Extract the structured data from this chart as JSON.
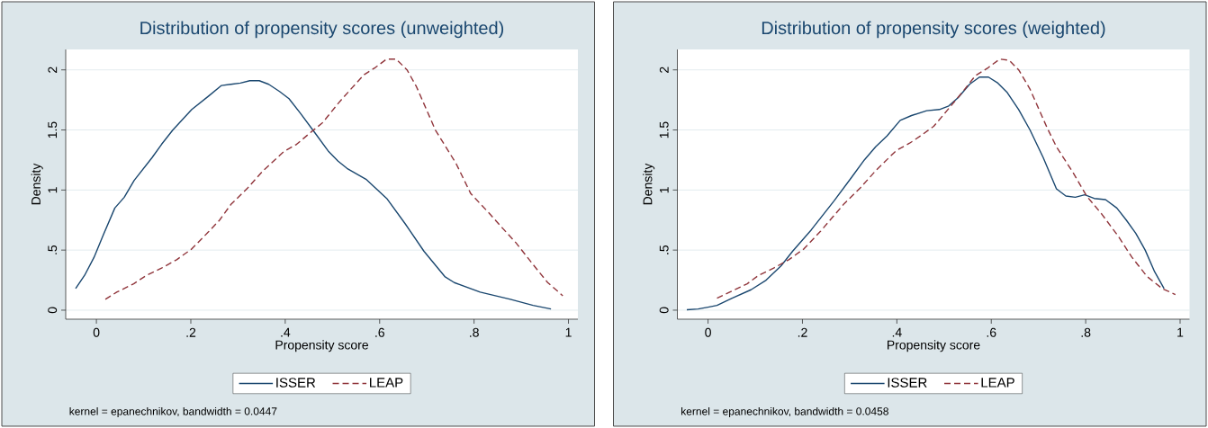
{
  "chart_data": [
    {
      "type": "line",
      "title": "Distribution of propensity scores (unweighted)",
      "xlabel": "Propensity score",
      "ylabel": "Density",
      "xlim": [
        -0.065,
        1.02
      ],
      "ylim": [
        -0.075,
        2.17
      ],
      "xticks": [
        0,
        {
          "value": 0.2,
          "label": ".2"
        },
        {
          "value": 0.4,
          "label": ".4"
        },
        {
          "value": 0.6,
          "label": ".6"
        },
        {
          "value": 0.8,
          "label": ".8"
        },
        1
      ],
      "yticks": [
        0,
        {
          "value": 0.5,
          "label": ".5"
        },
        1,
        1.5,
        2
      ],
      "grid": "y",
      "legend": "bottom",
      "annotations": [
        "kernel = epanechnikov, bandwidth = 0.0447"
      ],
      "series": [
        {
          "name": "ISSER",
          "color": "#1a476f",
          "line_style": "solid",
          "x": [
            -0.044,
            -0.025,
            -0.005,
            0.015,
            0.039,
            0.059,
            0.08,
            0.118,
            0.138,
            0.162,
            0.202,
            0.237,
            0.265,
            0.285,
            0.305,
            0.325,
            0.345,
            0.365,
            0.388,
            0.408,
            0.432,
            0.464,
            0.492,
            0.512,
            0.531,
            0.571,
            0.615,
            0.654,
            0.694,
            0.738,
            0.758,
            0.813,
            0.877,
            0.925,
            0.963
          ],
          "values": [
            0.18,
            0.29,
            0.44,
            0.63,
            0.85,
            0.94,
            1.08,
            1.27,
            1.38,
            1.5,
            1.67,
            1.78,
            1.87,
            1.88,
            1.89,
            1.91,
            1.91,
            1.88,
            1.82,
            1.76,
            1.64,
            1.47,
            1.32,
            1.24,
            1.18,
            1.09,
            0.93,
            0.72,
            0.49,
            0.28,
            0.23,
            0.15,
            0.09,
            0.04,
            0.01
          ]
        },
        {
          "name": "LEAP",
          "color": "#90353b",
          "line_style": "dashed",
          "x": [
            0.019,
            0.043,
            0.079,
            0.106,
            0.138,
            0.17,
            0.202,
            0.237,
            0.261,
            0.285,
            0.321,
            0.353,
            0.397,
            0.424,
            0.448,
            0.479,
            0.512,
            0.539,
            0.567,
            0.591,
            0.615,
            0.635,
            0.658,
            0.678,
            0.718,
            0.762,
            0.793,
            0.829,
            0.861,
            0.889,
            0.925,
            0.956,
            0.988
          ],
          "values": [
            0.09,
            0.15,
            0.22,
            0.29,
            0.35,
            0.42,
            0.51,
            0.65,
            0.75,
            0.88,
            1.02,
            1.16,
            1.32,
            1.38,
            1.46,
            1.56,
            1.72,
            1.84,
            1.96,
            2.02,
            2.09,
            2.09,
            2.0,
            1.86,
            1.5,
            1.22,
            0.97,
            0.82,
            0.68,
            0.56,
            0.38,
            0.23,
            0.12
          ]
        }
      ]
    },
    {
      "type": "line",
      "title": "Distribution of propensity scores (weighted)",
      "xlabel": "Propensity score",
      "ylabel": "Density",
      "xlim": [
        -0.065,
        1.02
      ],
      "ylim": [
        -0.075,
        2.17
      ],
      "xticks": [
        0,
        {
          "value": 0.2,
          "label": ".2"
        },
        {
          "value": 0.4,
          "label": ".4"
        },
        {
          "value": 0.6,
          "label": ".6"
        },
        {
          "value": 0.8,
          "label": ".8"
        },
        1
      ],
      "yticks": [
        0,
        {
          "value": 0.5,
          "label": ".5"
        },
        1,
        1.5,
        2
      ],
      "grid": "y",
      "legend": "bottom",
      "annotations": [
        "kernel = epanechnikov, bandwidth = 0.0458"
      ],
      "series": [
        {
          "name": "ISSER",
          "color": "#1a476f",
          "line_style": "solid",
          "x": [
            -0.045,
            -0.021,
            0,
            0.019,
            0.051,
            0.091,
            0.123,
            0.155,
            0.179,
            0.219,
            0.267,
            0.303,
            0.331,
            0.355,
            0.379,
            0.407,
            0.431,
            0.463,
            0.49,
            0.51,
            0.53,
            0.554,
            0.575,
            0.594,
            0.614,
            0.634,
            0.658,
            0.682,
            0.71,
            0.738,
            0.758,
            0.778,
            0.798,
            0.818,
            0.842,
            0.866,
            0.886,
            0.906,
            0.926,
            0.946,
            0.966
          ],
          "values": [
            0.003,
            0.01,
            0.025,
            0.04,
            0.1,
            0.17,
            0.25,
            0.37,
            0.49,
            0.67,
            0.91,
            1.1,
            1.25,
            1.36,
            1.45,
            1.58,
            1.62,
            1.66,
            1.67,
            1.7,
            1.77,
            1.88,
            1.94,
            1.94,
            1.89,
            1.81,
            1.67,
            1.5,
            1.27,
            1.01,
            0.95,
            0.94,
            0.96,
            0.93,
            0.92,
            0.85,
            0.75,
            0.64,
            0.5,
            0.32,
            0.18
          ]
        },
        {
          "name": "LEAP",
          "color": "#90353b",
          "line_style": "dashed",
          "x": [
            0.019,
            0.051,
            0.083,
            0.107,
            0.139,
            0.171,
            0.203,
            0.239,
            0.263,
            0.287,
            0.323,
            0.355,
            0.399,
            0.427,
            0.45,
            0.478,
            0.506,
            0.542,
            0.566,
            0.594,
            0.618,
            0.638,
            0.658,
            0.682,
            0.718,
            0.738,
            0.774,
            0.802,
            0.834,
            0.87,
            0.898,
            0.93,
            0.962,
            0.99
          ],
          "values": [
            0.1,
            0.16,
            0.22,
            0.29,
            0.35,
            0.42,
            0.51,
            0.66,
            0.77,
            0.88,
            1.02,
            1.16,
            1.33,
            1.39,
            1.45,
            1.53,
            1.66,
            1.83,
            1.95,
            2.02,
            2.09,
            2.08,
            2.0,
            1.84,
            1.52,
            1.36,
            1.14,
            0.95,
            0.8,
            0.61,
            0.44,
            0.28,
            0.18,
            0.13
          ]
        }
      ]
    }
  ]
}
